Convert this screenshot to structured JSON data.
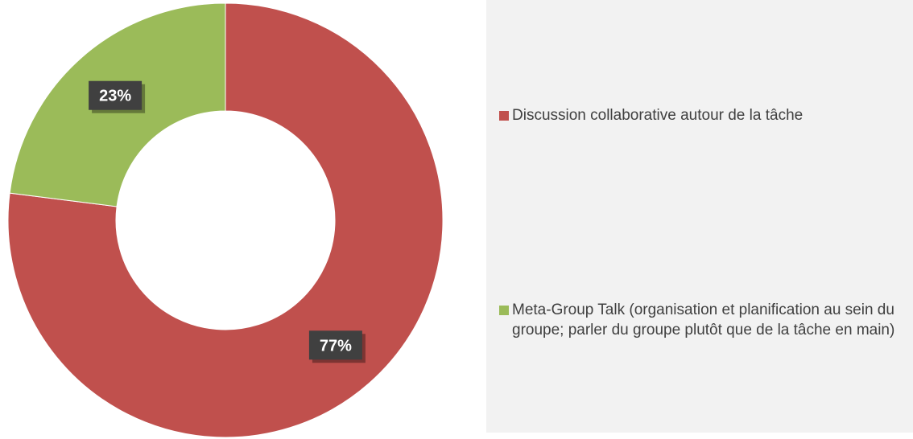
{
  "chart_data": {
    "type": "pie",
    "variant": "donut",
    "title": "",
    "categories": [
      "Discussion collaborative autour de la tâche",
      "Meta-Group Talk (organisation et planification au sein du groupe; parler du groupe plutôt que de la tâche en main)"
    ],
    "values": [
      77,
      23
    ],
    "unit": "%",
    "data_labels": [
      "77%",
      "23%"
    ],
    "colors": [
      "#c0504d",
      "#9bbb59"
    ],
    "label_background": "#404040",
    "legend_position": "right"
  }
}
